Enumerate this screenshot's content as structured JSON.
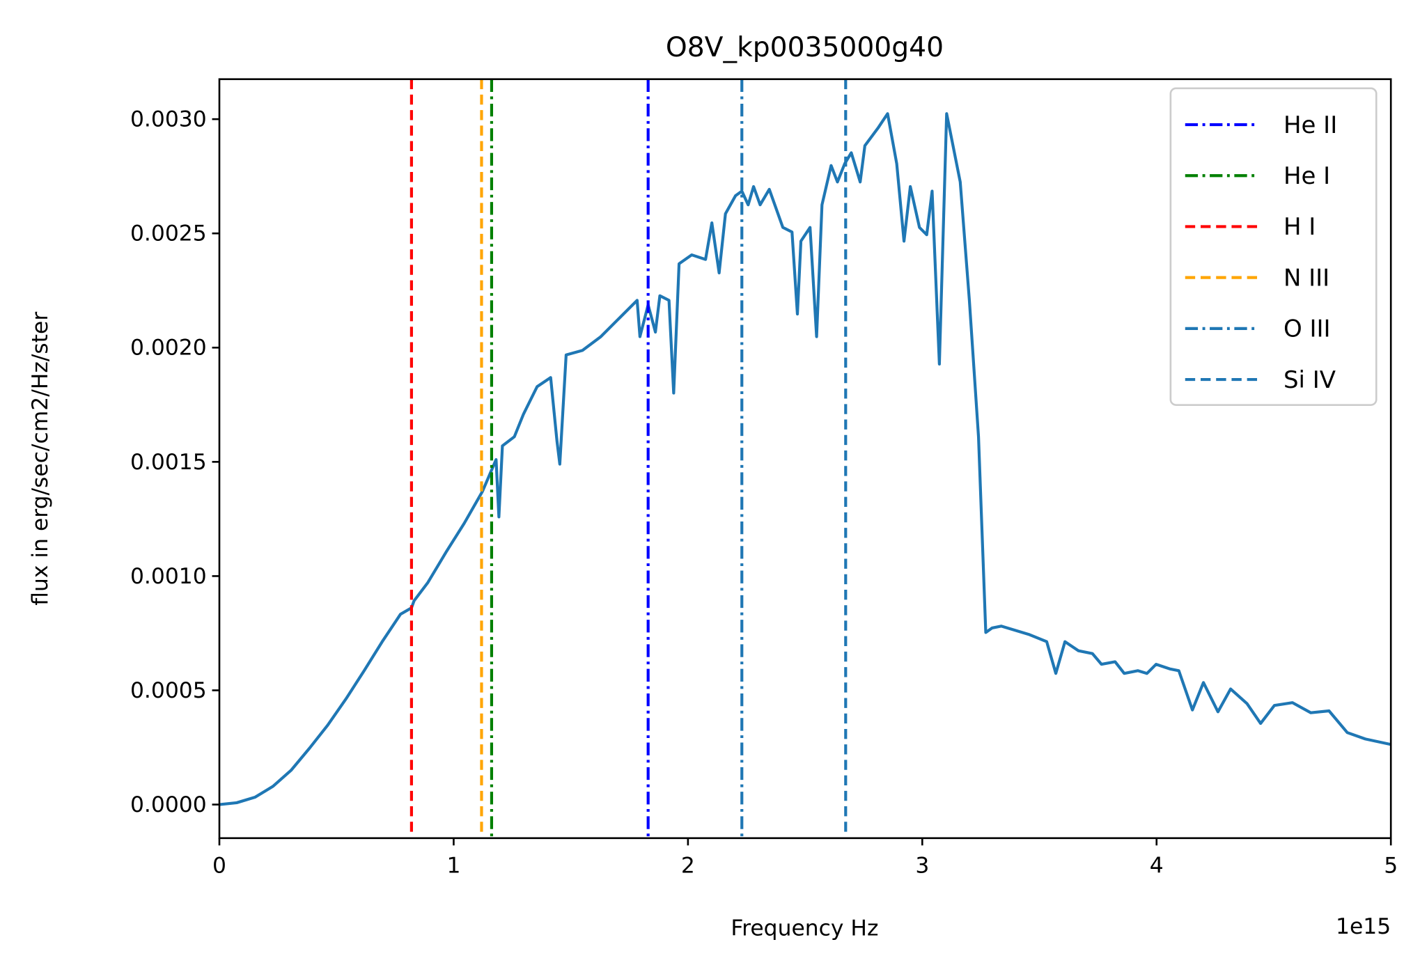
{
  "chart_data": {
    "type": "line",
    "title": "O8V_kp0035000g40",
    "xlabel": "Frequency Hz",
    "ylabel": "flux in erg/sec/cm2/Hz/ster",
    "x_offset_label": "1e15",
    "color": "#1f77b4",
    "x": [
      0,
      0.074,
      0.152,
      0.229,
      0.307,
      0.385,
      0.462,
      0.54,
      0.618,
      0.695,
      0.773,
      0.82,
      0.831,
      0.89,
      0.967,
      1.045,
      1.123,
      1.181,
      1.193,
      1.208,
      1.259,
      1.298,
      1.356,
      1.414,
      1.441,
      1.453,
      1.48,
      1.55,
      1.628,
      1.705,
      1.783,
      1.795,
      1.83,
      1.861,
      1.88,
      1.919,
      1.939,
      1.962,
      2.016,
      2.075,
      2.102,
      2.133,
      2.16,
      2.203,
      2.23,
      2.257,
      2.28,
      2.308,
      2.347,
      2.405,
      2.444,
      2.467,
      2.482,
      2.521,
      2.549,
      2.572,
      2.611,
      2.638,
      2.669,
      2.697,
      2.735,
      2.755,
      2.813,
      2.852,
      2.891,
      2.922,
      2.949,
      2.988,
      3.019,
      3.042,
      3.073,
      3.104,
      3.162,
      3.201,
      3.24,
      3.271,
      3.298,
      3.337,
      3.454,
      3.531,
      3.57,
      3.609,
      3.667,
      3.726,
      3.765,
      3.823,
      3.862,
      3.92,
      3.959,
      3.998,
      4.056,
      4.095,
      4.153,
      4.2,
      4.262,
      4.316,
      4.386,
      4.444,
      4.503,
      4.58,
      4.658,
      4.736,
      4.814,
      4.891,
      5.0
    ],
    "values": [
      0,
      8e-06,
      3.2e-05,
      8e-05,
      0.000151,
      0.000247,
      0.000347,
      0.000462,
      0.000586,
      0.000713,
      0.000833,
      0.000861,
      0.000892,
      0.000972,
      0.001104,
      0.001231,
      0.001371,
      0.00151,
      0.001259,
      0.00157,
      0.00161,
      0.001709,
      0.001829,
      0.001869,
      0.00159,
      0.00149,
      0.001968,
      0.001988,
      0.002048,
      0.002127,
      0.002207,
      0.002048,
      0.002187,
      0.002068,
      0.002227,
      0.002207,
      0.001801,
      0.002367,
      0.002406,
      0.002386,
      0.002546,
      0.002327,
      0.002586,
      0.002665,
      0.002685,
      0.002625,
      0.002705,
      0.002625,
      0.002693,
      0.002526,
      0.002506,
      0.002147,
      0.002466,
      0.002526,
      0.002048,
      0.002625,
      0.002797,
      0.002725,
      0.002805,
      0.002853,
      0.002725,
      0.002884,
      0.002964,
      0.003024,
      0.002805,
      0.002466,
      0.002705,
      0.002526,
      0.002494,
      0.002685,
      0.001928,
      0.003024,
      0.002725,
      0.002207,
      0.00161,
      0.000753,
      0.000773,
      0.000781,
      0.000745,
      0.000713,
      0.000574,
      0.000713,
      0.000673,
      0.000661,
      0.000614,
      0.000625,
      0.000574,
      0.000586,
      0.000574,
      0.000614,
      0.000594,
      0.000586,
      0.000414,
      0.000534,
      0.000406,
      0.000506,
      0.000442,
      0.000355,
      0.000434,
      0.000446,
      0.000402,
      0.00041,
      0.000315,
      0.000287,
      0.000263
    ],
    "lines": [
      {
        "name": "He II",
        "x": 1.83,
        "color": "#0000ff",
        "dash": "dashdot"
      },
      {
        "name": "He I",
        "x": 1.162,
        "color": "#008000",
        "dash": "dashdot"
      },
      {
        "name": "H I",
        "x": 0.82,
        "color": "#ff0000",
        "dash": "dashed"
      },
      {
        "name": "N III",
        "x": 1.119,
        "color": "#ffa500",
        "dash": "dashed"
      },
      {
        "name": "O III",
        "x": 2.23,
        "color": "#1f77b4",
        "dash": "dashdot"
      },
      {
        "name": "Si IV",
        "x": 2.673,
        "color": "#1f77b4",
        "dash": "dashed"
      }
    ],
    "xlim": [
      0,
      5
    ],
    "ylim": [
      -0.000147,
      0.003175
    ],
    "xticks": [
      0,
      1,
      2,
      3,
      4,
      5
    ],
    "yticks": [
      {
        "value": 0,
        "label": "0.0000"
      },
      {
        "value": 0.0005,
        "label": "0.0005"
      },
      {
        "value": 0.001,
        "label": "0.0010"
      },
      {
        "value": 0.0015,
        "label": "0.0015"
      },
      {
        "value": 0.002,
        "label": "0.0020"
      },
      {
        "value": 0.0025,
        "label": "0.0025"
      },
      {
        "value": 0.003,
        "label": "0.0030"
      }
    ],
    "legend": "upper right"
  }
}
